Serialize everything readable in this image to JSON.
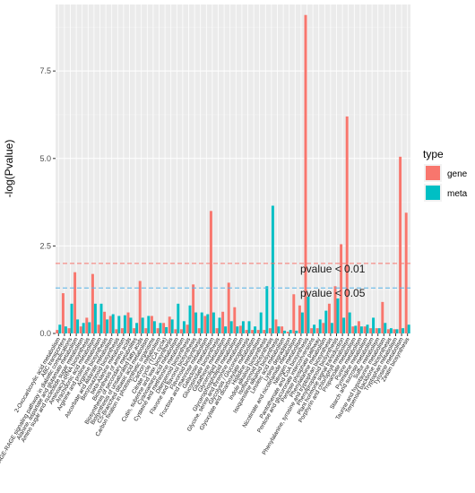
{
  "chart_data": {
    "type": "bar",
    "ylabel": "-log(Pvalue)",
    "ylim": [
      0,
      9.4
    ],
    "yticks": [
      "0.0",
      "2.5",
      "5.0",
      "7.5"
    ],
    "grid": true,
    "legend_position": "right",
    "legend": {
      "title": "type",
      "items": [
        {
          "label": "gene",
          "color": "#F8766D"
        },
        {
          "label": "meta",
          "color": "#00BFC4"
        }
      ]
    },
    "thresholds": [
      {
        "label": "pvalue < 0.01",
        "value": 2.0,
        "color": "#F8766D"
      },
      {
        "label": "pvalue < 0.05",
        "value": 1.3,
        "color": "#56B4E9"
      }
    ],
    "categories": [
      "2-Oxocarboxylic acid metabolism",
      "ABC transporters",
      "AGE-RAGE signaling pathway in diabetic complications",
      "Alanine, aspartate and glutamate metabolism",
      "Amino sugar and nucleotide sugar metabolism",
      "Aminoacyl-tRNA biosynthesis",
      "Arachidonic acid metabolism",
      "Arginine and proline metabolism",
      "Arginine biosynthesis",
      "Ascorbate and aldarate metabolism",
      "Benzoxazinoid biosynthesis",
      "beta-Alanine metabolism",
      "Biosynthesis of amino acids",
      "Biosynthesis of secondary metabolites",
      "Biosynthesis of unsaturated fatty acids",
      "C5-Branched dibasic acid metabolism",
      "Carbon fixation in photosynthetic organisms",
      "Carbon metabolism",
      "Citrate cycle (TCA cycle)",
      "Cutin, suberine and wax biosynthesis",
      "Cyanoamino acid metabolism",
      "Cysteine and methionine metabolism",
      "Diterpenoid biosynthesis",
      "Flavone and flavonol biosynthesis",
      "Flavonoid biosynthesis",
      "Fructose and mannose metabolism",
      "Galactose metabolism",
      "Glucosinolate biosynthesis",
      "Glutathione metabolism",
      "Glycerolipid metabolism",
      "Glycerophospholipid metabolism",
      "Glycine, serine and threonine metabolism",
      "Glycolysis / Gluconeogenesis",
      "Glyoxylate and dicarboxylate metabolism",
      "Histidine metabolism",
      "Indole alkaloid biosynthesis",
      "Isoflavonoid biosynthesis",
      "Isoquinoline alkaloid biosynthesis",
      "Linoleic acid metabolism",
      "Lysine degradation",
      "Nicotinate and nicotinamide metabolism",
      "Nitrogen metabolism",
      "Pantothenate and CoA biosynthesis",
      "Pentose and glucuronate interconversions",
      "Pentose phosphate pathway",
      "Phenylalanine metabolism",
      "Phenylalanine, tyrosine and tryptophan biosynthesis",
      "Phenylpropanoid biosynthesis",
      "Plant hormone signal transduction",
      "Porphyrin and chlorophyll metabolism",
      "Propanoate metabolism",
      "Purine metabolism",
      "Pyrimidine metabolism",
      "Starch and sucrose metabolism",
      "Sulfur metabolism",
      "Taurine and hypotaurine metabolism",
      "Terpenoid backbone biosynthesis",
      "Tryptophan metabolism",
      "Tyrosine metabolism",
      "Zeatin biosynthesis"
    ],
    "series": [
      {
        "name": "gene",
        "color": "#F8766D",
        "values": [
          0.1,
          1.15,
          0.15,
          1.75,
          0.2,
          0.45,
          1.7,
          0.25,
          0.62,
          0.5,
          0.12,
          0.15,
          0.6,
          0.15,
          1.5,
          0.15,
          0.5,
          0.15,
          0.3,
          0.48,
          0.12,
          0.12,
          0.25,
          1.4,
          0.15,
          0.5,
          3.5,
          0.15,
          0.62,
          1.45,
          0.75,
          0.22,
          0.1,
          0.1,
          0.1,
          0.1,
          0.15,
          0.4,
          0.2,
          0.05,
          1.12,
          0.8,
          9.1,
          0.15,
          0.15,
          0.3,
          0.85,
          1.35,
          2.55,
          6.2,
          0.2,
          0.35,
          0.2,
          0.15,
          0.15,
          0.9,
          0.12,
          0.12,
          5.05,
          3.45
        ]
      },
      {
        "name": "meta",
        "color": "#00BFC4",
        "values": [
          0.25,
          0.2,
          0.85,
          0.4,
          0.3,
          0.32,
          0.85,
          0.85,
          0.4,
          0.55,
          0.5,
          0.52,
          0.45,
          0.3,
          0.45,
          0.5,
          0.35,
          0.3,
          0.18,
          0.4,
          0.85,
          0.35,
          0.8,
          0.6,
          0.6,
          0.55,
          0.6,
          0.45,
          0.2,
          0.35,
          0.2,
          0.35,
          0.35,
          0.2,
          0.6,
          1.35,
          3.65,
          0.2,
          0.08,
          0.1,
          0.08,
          0.6,
          1.05,
          0.25,
          0.4,
          0.65,
          0.3,
          1.0,
          0.45,
          0.6,
          0.22,
          0.2,
          0.25,
          0.45,
          0.15,
          0.3,
          0.15,
          0.12,
          0.15,
          0.25
        ]
      }
    ]
  }
}
